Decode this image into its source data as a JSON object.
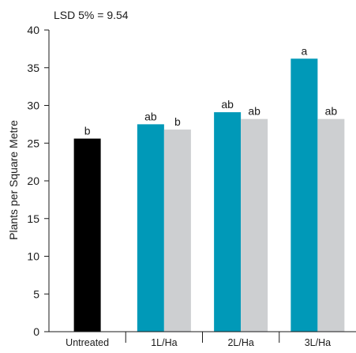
{
  "chart_data": {
    "type": "bar",
    "title": "LSD 5% = 9.54",
    "xlabel": "",
    "ylabel": "Plants per Square Metre",
    "ylim": [
      0,
      40
    ],
    "yticks": [
      0,
      5,
      10,
      15,
      20,
      25,
      30,
      35,
      40
    ],
    "grid": false,
    "categories": [
      "Untreated",
      "1L/Ha",
      "2L/Ha",
      "3L/Ha"
    ],
    "series": [
      {
        "color": "#000000",
        "values": [
          25.6,
          null,
          null,
          null
        ],
        "labels": [
          "b",
          null,
          null,
          null
        ]
      },
      {
        "color": "#0099b8",
        "values": [
          null,
          27.5,
          29.1,
          36.2
        ],
        "labels": [
          null,
          "ab",
          "ab",
          "a"
        ]
      },
      {
        "color": "#cdcfd1",
        "values": [
          null,
          26.8,
          28.2,
          28.2
        ],
        "labels": [
          null,
          "b",
          "ab",
          "ab"
        ]
      }
    ]
  }
}
